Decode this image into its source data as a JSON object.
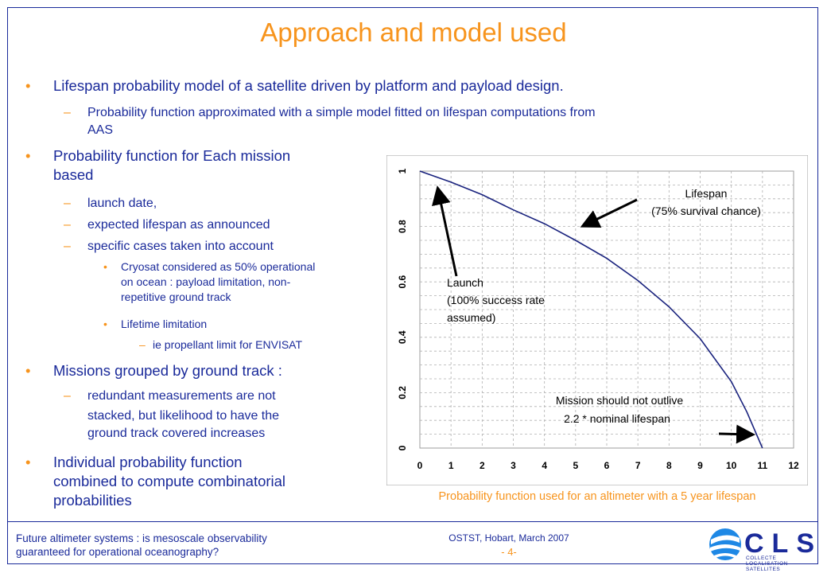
{
  "slide": {
    "title": "Approach and model used",
    "bullets_top": [
      {
        "text": "Lifespan probability model of a satellite driven by platform and payload design.",
        "sub": "Probability function approximated with a simple model fitted on lifespan computations from",
        "sub_cont": "AAS"
      }
    ],
    "left_column": {
      "b1": "Probability function for Each mission",
      "b1_cont": "based",
      "b1_subs": [
        "launch date,",
        "expected lifespan as announced",
        "specific cases taken into account"
      ],
      "b1_sub3_items": [
        {
          "l1": "Cryosat considered as 50% operational",
          "l2": "on ocean : payload limitation, non-",
          "l3": "repetitive ground track"
        },
        {
          "l1": "Lifetime limitation"
        }
      ],
      "b1_sub3_item2_sub": "ie propellant limit for ENVISAT",
      "b2": "Missions grouped by ground track :",
      "b2_sub_l1": "redundant measurements are not",
      "b2_sub_l2": "stacked, but likelihood to have the",
      "b2_sub_l3": "ground track covered increases",
      "b3_l1": "Individual probability function",
      "b3_l2": "combined to compute combinatorial",
      "b3_l3": "probabilities"
    },
    "caption": "Probability function used for an altimeter with a 5 year lifespan",
    "footer": {
      "left_l1": "Future altimeter systems : is mesoscale observability",
      "left_l2": "guaranteed for operational oceanography?",
      "event": "OSTST, Hobart, March 2007",
      "page": "- 4-"
    },
    "logo": {
      "letters": "CLS",
      "tagline": "COLLECTE LOCALISATION SATELLITES"
    },
    "colors": {
      "text": "#1a2a9a",
      "accent": "#f7941d",
      "curve": "#1a237e"
    }
  },
  "chart_data": {
    "type": "line",
    "x_ticks": [
      "0",
      "1",
      "2",
      "3",
      "4",
      "5",
      "6",
      "7",
      "8",
      "9",
      "10",
      "11",
      "12"
    ],
    "y_ticks": [
      "0",
      "0.2",
      "0.4",
      "0.6",
      "0.8",
      "1"
    ],
    "xlim": [
      0,
      12
    ],
    "ylim": [
      0,
      1
    ],
    "grid": true,
    "series": [
      {
        "x": [
          0,
          1,
          2,
          3,
          4,
          5,
          6,
          7,
          8,
          9,
          10,
          10.5,
          11
        ],
        "y": [
          1.0,
          0.96,
          0.915,
          0.86,
          0.81,
          0.75,
          0.685,
          0.605,
          0.51,
          0.395,
          0.24,
          0.13,
          0.0
        ]
      }
    ],
    "annotations": {
      "lifespan_l1": "Lifespan",
      "lifespan_l2": "(75% survival chance)",
      "launch_l1": "Launch",
      "launch_l2": "(100% success rate",
      "launch_l3": "assumed)",
      "mission_l1": "Mission should not outlive",
      "mission_l2": "2.2 * nominal lifespan"
    }
  }
}
